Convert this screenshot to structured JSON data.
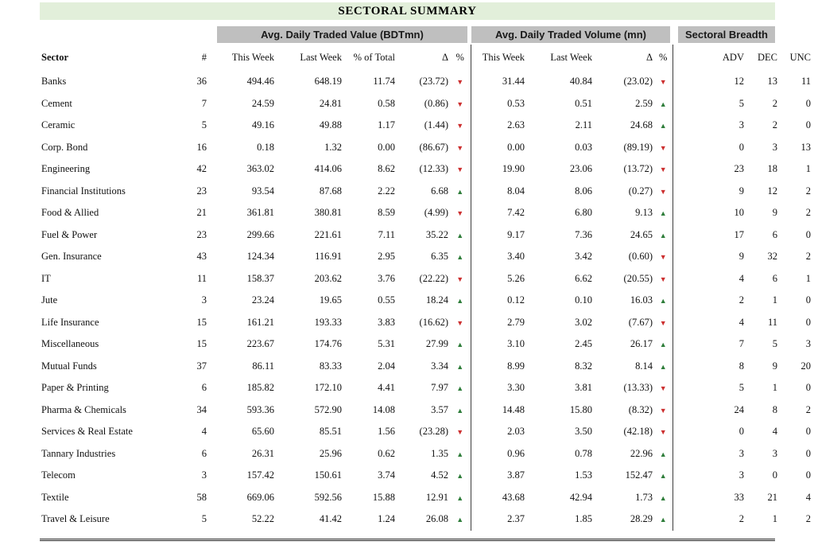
{
  "title": "SECTORAL SUMMARY",
  "sections": {
    "value": "Avg. Daily Traded Value (BDTmn)",
    "volume": "Avg. Daily Traded Volume (mn)",
    "breadth": "Sectoral Breadth"
  },
  "columns": {
    "sector": "Sector",
    "count": "#",
    "this_week": "This Week",
    "last_week": "Last Week",
    "pct_of_total": "% of Total",
    "delta": "Δ",
    "pct": "%",
    "adv": "ADV",
    "dec": "DEC",
    "unc": "UNC"
  },
  "icons": {
    "up": "▲",
    "down": "▼"
  },
  "colors": {
    "title_bg": "#e2efda",
    "section_bg": "#bfbfbf",
    "up_triangle": "#2e7d3a",
    "down_triangle": "#cc2e2e",
    "text": "#111111"
  },
  "rows": [
    {
      "sector": "Banks",
      "count": "36",
      "value_tw": "494.46",
      "value_lw": "648.19",
      "pct_of_total": "11.74",
      "value_delta": "(23.72)",
      "value_dir": "down",
      "vol_tw": "31.44",
      "vol_lw": "40.84",
      "vol_delta": "(23.02)",
      "vol_dir": "down",
      "adv": "12",
      "dec": "13",
      "unc": "11"
    },
    {
      "sector": "Cement",
      "count": "7",
      "value_tw": "24.59",
      "value_lw": "24.81",
      "pct_of_total": "0.58",
      "value_delta": "(0.86)",
      "value_dir": "down",
      "vol_tw": "0.53",
      "vol_lw": "0.51",
      "vol_delta": "2.59",
      "vol_dir": "up",
      "adv": "5",
      "dec": "2",
      "unc": "0"
    },
    {
      "sector": "Ceramic",
      "count": "5",
      "value_tw": "49.16",
      "value_lw": "49.88",
      "pct_of_total": "1.17",
      "value_delta": "(1.44)",
      "value_dir": "down",
      "vol_tw": "2.63",
      "vol_lw": "2.11",
      "vol_delta": "24.68",
      "vol_dir": "up",
      "adv": "3",
      "dec": "2",
      "unc": "0"
    },
    {
      "sector": "Corp. Bond",
      "count": "16",
      "value_tw": "0.18",
      "value_lw": "1.32",
      "pct_of_total": "0.00",
      "value_delta": "(86.67)",
      "value_dir": "down",
      "vol_tw": "0.00",
      "vol_lw": "0.03",
      "vol_delta": "(89.19)",
      "vol_dir": "down",
      "adv": "0",
      "dec": "3",
      "unc": "13"
    },
    {
      "sector": "Engineering",
      "count": "42",
      "value_tw": "363.02",
      "value_lw": "414.06",
      "pct_of_total": "8.62",
      "value_delta": "(12.33)",
      "value_dir": "down",
      "vol_tw": "19.90",
      "vol_lw": "23.06",
      "vol_delta": "(13.72)",
      "vol_dir": "down",
      "adv": "23",
      "dec": "18",
      "unc": "1"
    },
    {
      "sector": "Financial Institutions",
      "count": "23",
      "value_tw": "93.54",
      "value_lw": "87.68",
      "pct_of_total": "2.22",
      "value_delta": "6.68",
      "value_dir": "up",
      "vol_tw": "8.04",
      "vol_lw": "8.06",
      "vol_delta": "(0.27)",
      "vol_dir": "down",
      "adv": "9",
      "dec": "12",
      "unc": "2"
    },
    {
      "sector": "Food & Allied",
      "count": "21",
      "value_tw": "361.81",
      "value_lw": "380.81",
      "pct_of_total": "8.59",
      "value_delta": "(4.99)",
      "value_dir": "down",
      "vol_tw": "7.42",
      "vol_lw": "6.80",
      "vol_delta": "9.13",
      "vol_dir": "up",
      "adv": "10",
      "dec": "9",
      "unc": "2"
    },
    {
      "sector": "Fuel & Power",
      "count": "23",
      "value_tw": "299.66",
      "value_lw": "221.61",
      "pct_of_total": "7.11",
      "value_delta": "35.22",
      "value_dir": "up",
      "vol_tw": "9.17",
      "vol_lw": "7.36",
      "vol_delta": "24.65",
      "vol_dir": "up",
      "adv": "17",
      "dec": "6",
      "unc": "0"
    },
    {
      "sector": "Gen. Insurance",
      "count": "43",
      "value_tw": "124.34",
      "value_lw": "116.91",
      "pct_of_total": "2.95",
      "value_delta": "6.35",
      "value_dir": "up",
      "vol_tw": "3.40",
      "vol_lw": "3.42",
      "vol_delta": "(0.60)",
      "vol_dir": "down",
      "adv": "9",
      "dec": "32",
      "unc": "2"
    },
    {
      "sector": "IT",
      "count": "11",
      "value_tw": "158.37",
      "value_lw": "203.62",
      "pct_of_total": "3.76",
      "value_delta": "(22.22)",
      "value_dir": "down",
      "vol_tw": "5.26",
      "vol_lw": "6.62",
      "vol_delta": "(20.55)",
      "vol_dir": "down",
      "adv": "4",
      "dec": "6",
      "unc": "1"
    },
    {
      "sector": "Jute",
      "count": "3",
      "value_tw": "23.24",
      "value_lw": "19.65",
      "pct_of_total": "0.55",
      "value_delta": "18.24",
      "value_dir": "up",
      "vol_tw": "0.12",
      "vol_lw": "0.10",
      "vol_delta": "16.03",
      "vol_dir": "up",
      "adv": "2",
      "dec": "1",
      "unc": "0"
    },
    {
      "sector": "Life Insurance",
      "count": "15",
      "value_tw": "161.21",
      "value_lw": "193.33",
      "pct_of_total": "3.83",
      "value_delta": "(16.62)",
      "value_dir": "down",
      "vol_tw": "2.79",
      "vol_lw": "3.02",
      "vol_delta": "(7.67)",
      "vol_dir": "down",
      "adv": "4",
      "dec": "11",
      "unc": "0"
    },
    {
      "sector": "Miscellaneous",
      "count": "15",
      "value_tw": "223.67",
      "value_lw": "174.76",
      "pct_of_total": "5.31",
      "value_delta": "27.99",
      "value_dir": "up",
      "vol_tw": "3.10",
      "vol_lw": "2.45",
      "vol_delta": "26.17",
      "vol_dir": "up",
      "adv": "7",
      "dec": "5",
      "unc": "3"
    },
    {
      "sector": "Mutual Funds",
      "count": "37",
      "value_tw": "86.11",
      "value_lw": "83.33",
      "pct_of_total": "2.04",
      "value_delta": "3.34",
      "value_dir": "up",
      "vol_tw": "8.99",
      "vol_lw": "8.32",
      "vol_delta": "8.14",
      "vol_dir": "up",
      "adv": "8",
      "dec": "9",
      "unc": "20"
    },
    {
      "sector": "Paper & Printing",
      "count": "6",
      "value_tw": "185.82",
      "value_lw": "172.10",
      "pct_of_total": "4.41",
      "value_delta": "7.97",
      "value_dir": "up",
      "vol_tw": "3.30",
      "vol_lw": "3.81",
      "vol_delta": "(13.33)",
      "vol_dir": "down",
      "adv": "5",
      "dec": "1",
      "unc": "0"
    },
    {
      "sector": "Pharma & Chemicals",
      "count": "34",
      "value_tw": "593.36",
      "value_lw": "572.90",
      "pct_of_total": "14.08",
      "value_delta": "3.57",
      "value_dir": "up",
      "vol_tw": "14.48",
      "vol_lw": "15.80",
      "vol_delta": "(8.32)",
      "vol_dir": "down",
      "adv": "24",
      "dec": "8",
      "unc": "2"
    },
    {
      "sector": "Services & Real Estate",
      "count": "4",
      "value_tw": "65.60",
      "value_lw": "85.51",
      "pct_of_total": "1.56",
      "value_delta": "(23.28)",
      "value_dir": "down",
      "vol_tw": "2.03",
      "vol_lw": "3.50",
      "vol_delta": "(42.18)",
      "vol_dir": "down",
      "adv": "0",
      "dec": "4",
      "unc": "0"
    },
    {
      "sector": "Tannary Industries",
      "count": "6",
      "value_tw": "26.31",
      "value_lw": "25.96",
      "pct_of_total": "0.62",
      "value_delta": "1.35",
      "value_dir": "up",
      "vol_tw": "0.96",
      "vol_lw": "0.78",
      "vol_delta": "22.96",
      "vol_dir": "up",
      "adv": "3",
      "dec": "3",
      "unc": "0"
    },
    {
      "sector": "Telecom",
      "count": "3",
      "value_tw": "157.42",
      "value_lw": "150.61",
      "pct_of_total": "3.74",
      "value_delta": "4.52",
      "value_dir": "up",
      "vol_tw": "3.87",
      "vol_lw": "1.53",
      "vol_delta": "152.47",
      "vol_dir": "up",
      "adv": "3",
      "dec": "0",
      "unc": "0"
    },
    {
      "sector": "Textile",
      "count": "58",
      "value_tw": "669.06",
      "value_lw": "592.56",
      "pct_of_total": "15.88",
      "value_delta": "12.91",
      "value_dir": "up",
      "vol_tw": "43.68",
      "vol_lw": "42.94",
      "vol_delta": "1.73",
      "vol_dir": "up",
      "adv": "33",
      "dec": "21",
      "unc": "4"
    },
    {
      "sector": "Travel & Leisure",
      "count": "5",
      "value_tw": "52.22",
      "value_lw": "41.42",
      "pct_of_total": "1.24",
      "value_delta": "26.08",
      "value_dir": "up",
      "vol_tw": "2.37",
      "vol_lw": "1.85",
      "vol_delta": "28.29",
      "vol_dir": "up",
      "adv": "2",
      "dec": "1",
      "unc": "2"
    }
  ]
}
